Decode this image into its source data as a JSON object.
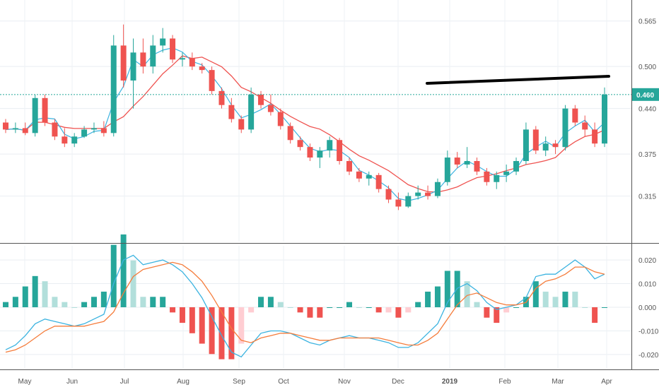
{
  "chart_data": [
    {
      "type": "candlestick",
      "x_labels": [
        "May",
        "Jun",
        "Jul",
        "Aug",
        "Sep",
        "Oct",
        "Nov",
        "Dec",
        "2019",
        "Feb",
        "Mar",
        "Apr"
      ],
      "y_ticks": [
        "0.565",
        "0.500",
        "0.440",
        "0.375",
        "0.315"
      ],
      "ylim": [
        0.25,
        0.595
      ],
      "last_price_label": "0.460",
      "last_price": 0.46,
      "colors": {
        "up": "#26a69a",
        "down": "#ef5350",
        "ma_fast": "#3bb3e0",
        "ma_slow": "#ef5350",
        "trendline": "#000000",
        "price_line": "#26a69a"
      },
      "candles_ohlc_weekly_approx": [
        [
          0.42,
          0.425,
          0.405,
          0.41
        ],
        [
          0.41,
          0.42,
          0.405,
          0.412
        ],
        [
          0.412,
          0.42,
          0.402,
          0.405
        ],
        [
          0.405,
          0.46,
          0.4,
          0.455
        ],
        [
          0.455,
          0.46,
          0.415,
          0.42
        ],
        [
          0.42,
          0.425,
          0.395,
          0.4
        ],
        [
          0.4,
          0.412,
          0.385,
          0.39
        ],
        [
          0.39,
          0.405,
          0.385,
          0.4
        ],
        [
          0.4,
          0.415,
          0.398,
          0.41
        ],
        [
          0.41,
          0.42,
          0.405,
          0.412
        ],
        [
          0.412,
          0.422,
          0.4,
          0.405
        ],
        [
          0.405,
          0.545,
          0.4,
          0.53
        ],
        [
          0.53,
          0.56,
          0.47,
          0.48
        ],
        [
          0.48,
          0.54,
          0.44,
          0.52
        ],
        [
          0.52,
          0.54,
          0.49,
          0.5
        ],
        [
          0.5,
          0.545,
          0.49,
          0.53
        ],
        [
          0.53,
          0.555,
          0.52,
          0.54
        ],
        [
          0.54,
          0.545,
          0.505,
          0.51
        ],
        [
          0.51,
          0.52,
          0.5,
          0.512
        ],
        [
          0.512,
          0.52,
          0.495,
          0.5
        ],
        [
          0.5,
          0.505,
          0.49,
          0.495
        ],
        [
          0.495,
          0.5,
          0.46,
          0.465
        ],
        [
          0.465,
          0.47,
          0.44,
          0.445
        ],
        [
          0.445,
          0.455,
          0.42,
          0.425
        ],
        [
          0.425,
          0.43,
          0.405,
          0.41
        ],
        [
          0.41,
          0.47,
          0.405,
          0.46
        ],
        [
          0.46,
          0.465,
          0.44,
          0.445
        ],
        [
          0.445,
          0.46,
          0.43,
          0.435
        ],
        [
          0.435,
          0.44,
          0.41,
          0.415
        ],
        [
          0.415,
          0.42,
          0.39,
          0.395
        ],
        [
          0.395,
          0.4,
          0.38,
          0.385
        ],
        [
          0.385,
          0.39,
          0.365,
          0.37
        ],
        [
          0.37,
          0.385,
          0.355,
          0.38
        ],
        [
          0.38,
          0.4,
          0.37,
          0.395
        ],
        [
          0.395,
          0.398,
          0.36,
          0.365
        ],
        [
          0.365,
          0.37,
          0.345,
          0.35
        ],
        [
          0.35,
          0.355,
          0.335,
          0.34
        ],
        [
          0.34,
          0.35,
          0.33,
          0.345
        ],
        [
          0.345,
          0.348,
          0.32,
          0.325
        ],
        [
          0.325,
          0.33,
          0.305,
          0.31
        ],
        [
          0.31,
          0.32,
          0.295,
          0.3
        ],
        [
          0.3,
          0.32,
          0.298,
          0.315
        ],
        [
          0.315,
          0.33,
          0.31,
          0.32
        ],
        [
          0.32,
          0.33,
          0.31,
          0.315
        ],
        [
          0.315,
          0.34,
          0.312,
          0.335
        ],
        [
          0.335,
          0.38,
          0.33,
          0.37
        ],
        [
          0.37,
          0.378,
          0.355,
          0.36
        ],
        [
          0.36,
          0.385,
          0.355,
          0.365
        ],
        [
          0.365,
          0.37,
          0.345,
          0.35
        ],
        [
          0.35,
          0.355,
          0.33,
          0.335
        ],
        [
          0.335,
          0.35,
          0.325,
          0.345
        ],
        [
          0.345,
          0.36,
          0.335,
          0.35
        ],
        [
          0.35,
          0.37,
          0.345,
          0.365
        ],
        [
          0.365,
          0.42,
          0.36,
          0.41
        ],
        [
          0.41,
          0.415,
          0.375,
          0.38
        ],
        [
          0.38,
          0.4,
          0.372,
          0.39
        ],
        [
          0.39,
          0.395,
          0.375,
          0.385
        ],
        [
          0.385,
          0.445,
          0.38,
          0.44
        ],
        [
          0.44,
          0.445,
          0.415,
          0.42
        ],
        [
          0.42,
          0.43,
          0.4,
          0.41
        ],
        [
          0.41,
          0.42,
          0.385,
          0.39
        ],
        [
          0.39,
          0.47,
          0.385,
          0.46
        ]
      ]
    },
    {
      "type": "line",
      "y_ticks": [
        "0.020",
        "0.010",
        "0.000",
        "-0.010",
        "-0.020"
      ],
      "ylim": [
        -0.026,
        0.026
      ],
      "macd": [
        -0.018,
        -0.016,
        -0.012,
        -0.007,
        -0.005,
        -0.006,
        -0.007,
        -0.008,
        -0.007,
        -0.005,
        -0.003,
        0.01,
        0.02,
        0.022,
        0.018,
        0.019,
        0.02,
        0.018,
        0.015,
        0.01,
        0.004,
        -0.004,
        -0.012,
        -0.019,
        -0.021,
        -0.016,
        -0.011,
        -0.01,
        -0.01,
        -0.011,
        -0.013,
        -0.015,
        -0.016,
        -0.014,
        -0.013,
        -0.012,
        -0.013,
        -0.013,
        -0.014,
        -0.015,
        -0.017,
        -0.017,
        -0.015,
        -0.011,
        -0.007,
        0.002,
        0.008,
        0.01,
        0.007,
        0.002,
        -0.001,
        0.0,
        0.001,
        0.004,
        0.013,
        0.014,
        0.014,
        0.017,
        0.02,
        0.017,
        0.012,
        0.014
      ],
      "signal": [
        -0.019,
        -0.018,
        -0.016,
        -0.013,
        -0.01,
        -0.008,
        -0.008,
        -0.008,
        -0.008,
        -0.007,
        -0.006,
        -0.002,
        0.006,
        0.013,
        0.016,
        0.017,
        0.018,
        0.019,
        0.018,
        0.015,
        0.011,
        0.005,
        -0.002,
        -0.009,
        -0.014,
        -0.015,
        -0.013,
        -0.012,
        -0.011,
        -0.011,
        -0.012,
        -0.013,
        -0.014,
        -0.014,
        -0.013,
        -0.013,
        -0.013,
        -0.013,
        -0.013,
        -0.014,
        -0.015,
        -0.016,
        -0.016,
        -0.014,
        -0.011,
        -0.005,
        0.001,
        0.005,
        0.006,
        0.004,
        0.002,
        0.001,
        0.001,
        0.002,
        0.008,
        0.011,
        0.012,
        0.014,
        0.017,
        0.017,
        0.015,
        0.014
      ]
    }
  ]
}
